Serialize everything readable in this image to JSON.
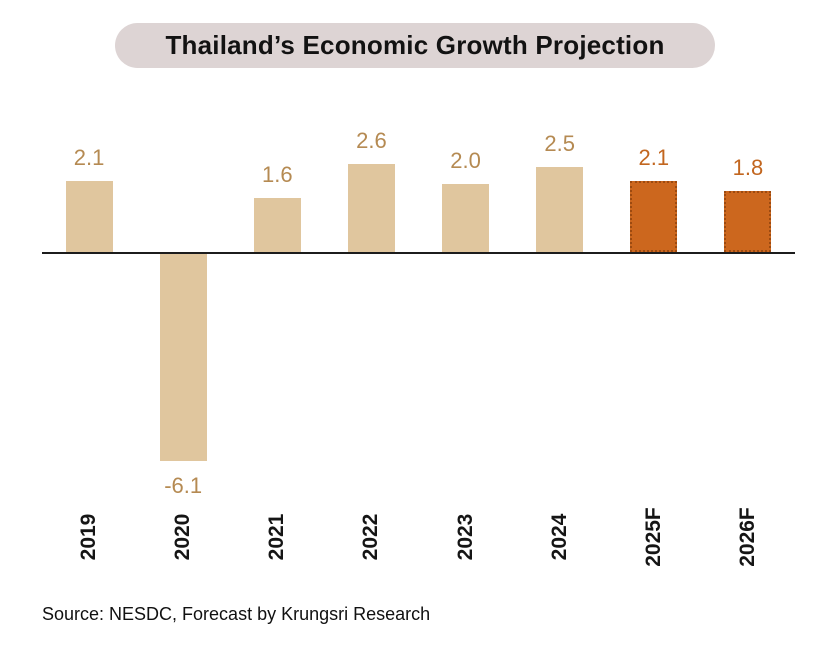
{
  "title": "Thailand’s Economic Growth Projection",
  "source_note": "Source: NESDC, Forecast by Krungsri Research",
  "colors": {
    "title_bg": "#ddd4d4",
    "historical_bar": "#e0c69e",
    "forecast_bar": "#cc671e",
    "forecast_border": "#9c4a10",
    "historical_label": "#b58a52",
    "forecast_label": "#c2661f",
    "axis": "#1c1c1c",
    "text": "#111111"
  },
  "chart_data": {
    "type": "bar",
    "title": "Thailand’s Economic Growth Projection",
    "categories": [
      "2019",
      "2020",
      "2021",
      "2022",
      "2023",
      "2024",
      "2025F",
      "2026F"
    ],
    "values": [
      2.1,
      -6.1,
      1.6,
      2.6,
      2.0,
      2.5,
      2.1,
      1.8
    ],
    "labels": [
      "2.1",
      "-6.1",
      "1.6",
      "2.6",
      "2.0",
      "2.5",
      "2.1",
      "1.8"
    ],
    "forecast_flags": [
      false,
      false,
      false,
      false,
      false,
      false,
      true,
      true
    ],
    "xlabel": "",
    "ylabel": "",
    "baseline": 0,
    "grid": false,
    "legend": false,
    "tick_label_rotation": -90
  }
}
